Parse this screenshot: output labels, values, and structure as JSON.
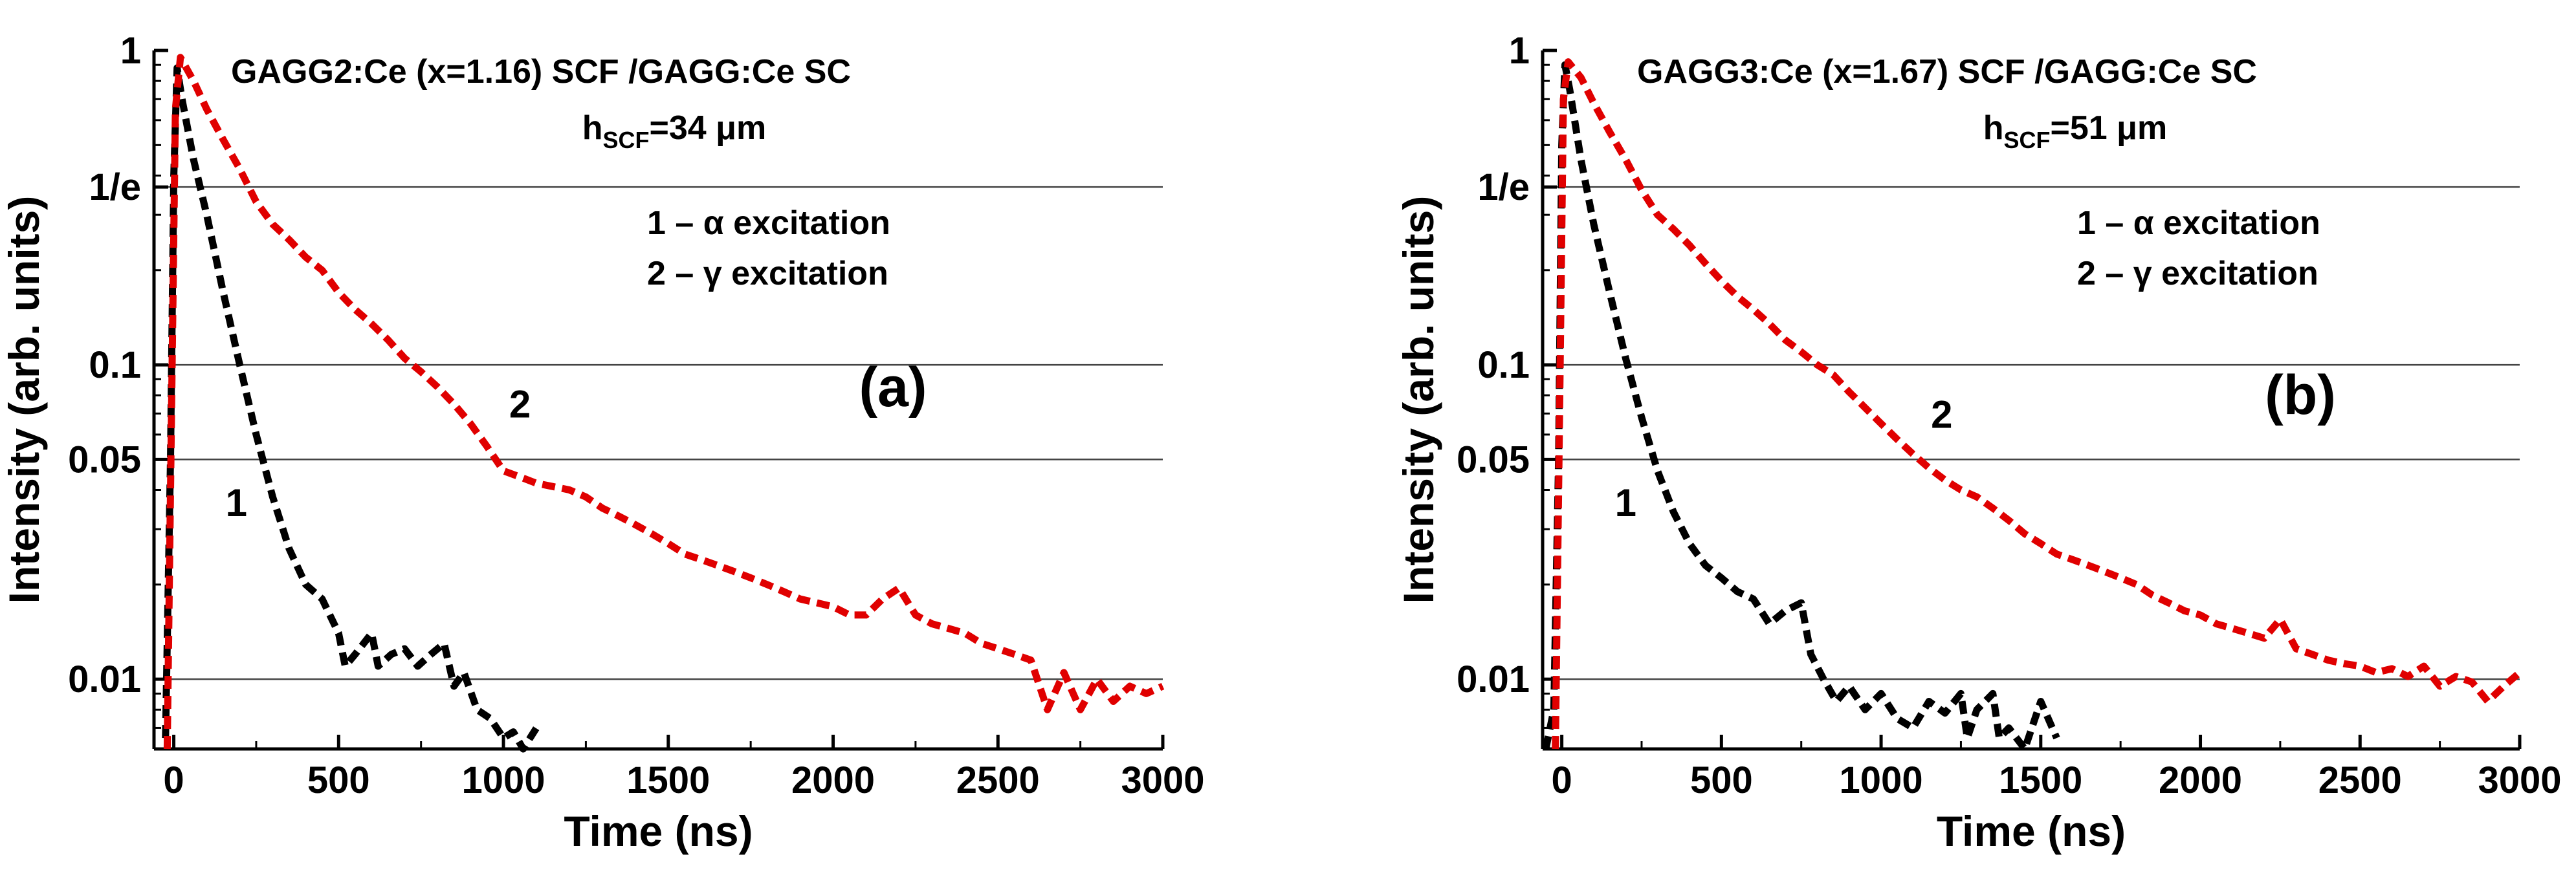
{
  "chart_data": [
    {
      "type": "line",
      "panel_label": "(a)",
      "title": "GAGG2:Ce (x=1.16) SCF /GAGG:Ce SC",
      "thickness": {
        "prefix": "h",
        "sub": "SCF",
        "suffix": "=34 μm"
      },
      "xlabel": "Time (ns)",
      "ylabel": "Intensity (arb. units)",
      "xlim": [
        -60,
        3000
      ],
      "ylim": [
        0.006,
        1.0
      ],
      "yscale": "log",
      "xticks": [
        0,
        500,
        1000,
        1500,
        2000,
        2500,
        3000
      ],
      "xtick_labels": [
        "0",
        "500",
        "1000",
        "1500",
        "2000",
        "2500",
        "3000"
      ],
      "yticks": [
        0.01,
        0.05,
        0.1,
        0.3679,
        1.0
      ],
      "ytick_labels": [
        "0.01",
        "0.05",
        "0.1",
        "1/e",
        "1"
      ],
      "reference_lines": [
        0.01,
        0.05,
        0.1,
        0.3679
      ],
      "legend": [
        "1 – α excitation",
        "2 – γ excitation"
      ],
      "series": [
        {
          "name": "1",
          "label": "1",
          "color": "#000000",
          "label_at": [
            190,
            0.033
          ],
          "points": [
            [
              -25,
              0.0065
            ],
            [
              -10,
              0.05
            ],
            [
              0,
              0.4
            ],
            [
              10,
              0.88
            ],
            [
              25,
              0.7
            ],
            [
              60,
              0.45
            ],
            [
              100,
              0.3
            ],
            [
              150,
              0.17
            ],
            [
              200,
              0.1
            ],
            [
              250,
              0.06
            ],
            [
              300,
              0.038
            ],
            [
              350,
              0.026
            ],
            [
              400,
              0.02
            ],
            [
              450,
              0.018
            ],
            [
              500,
              0.014
            ],
            [
              520,
              0.011
            ],
            [
              550,
              0.012
            ],
            [
              600,
              0.014
            ],
            [
              620,
              0.011
            ],
            [
              660,
              0.012
            ],
            [
              700,
              0.0125
            ],
            [
              740,
              0.011
            ],
            [
              780,
              0.012
            ],
            [
              820,
              0.013
            ],
            [
              850,
              0.0095
            ],
            [
              880,
              0.0105
            ],
            [
              920,
              0.008
            ],
            [
              960,
              0.0075
            ],
            [
              1000,
              0.0065
            ],
            [
              1030,
              0.0068
            ],
            [
              1060,
              0.006
            ],
            [
              1100,
              0.007
            ]
          ]
        },
        {
          "name": "2",
          "label": "2",
          "color": "#e00000",
          "label_at": [
            1050,
            0.068
          ],
          "points": [
            [
              -20,
              0.006
            ],
            [
              -5,
              0.1
            ],
            [
              5,
              0.65
            ],
            [
              20,
              0.95
            ],
            [
              60,
              0.8
            ],
            [
              100,
              0.65
            ],
            [
              150,
              0.52
            ],
            [
              200,
              0.42
            ],
            [
              250,
              0.33
            ],
            [
              300,
              0.28
            ],
            [
              350,
              0.25
            ],
            [
              400,
              0.22
            ],
            [
              450,
              0.2
            ],
            [
              500,
              0.17
            ],
            [
              550,
              0.15
            ],
            [
              600,
              0.135
            ],
            [
              650,
              0.12
            ],
            [
              700,
              0.105
            ],
            [
              750,
              0.095
            ],
            [
              800,
              0.085
            ],
            [
              850,
              0.075
            ],
            [
              900,
              0.065
            ],
            [
              950,
              0.055
            ],
            [
              1000,
              0.046
            ],
            [
              1050,
              0.044
            ],
            [
              1100,
              0.042
            ],
            [
              1150,
              0.041
            ],
            [
              1200,
              0.04
            ],
            [
              1250,
              0.038
            ],
            [
              1300,
              0.035
            ],
            [
              1350,
              0.033
            ],
            [
              1400,
              0.031
            ],
            [
              1450,
              0.029
            ],
            [
              1500,
              0.027
            ],
            [
              1550,
              0.025
            ],
            [
              1600,
              0.024
            ],
            [
              1650,
              0.023
            ],
            [
              1700,
              0.022
            ],
            [
              1750,
              0.021
            ],
            [
              1800,
              0.02
            ],
            [
              1850,
              0.019
            ],
            [
              1900,
              0.018
            ],
            [
              1950,
              0.0175
            ],
            [
              2000,
              0.017
            ],
            [
              2050,
              0.016
            ],
            [
              2100,
              0.016
            ],
            [
              2150,
              0.018
            ],
            [
              2200,
              0.0195
            ],
            [
              2250,
              0.016
            ],
            [
              2300,
              0.015
            ],
            [
              2350,
              0.0145
            ],
            [
              2400,
              0.014
            ],
            [
              2450,
              0.013
            ],
            [
              2500,
              0.0125
            ],
            [
              2550,
              0.012
            ],
            [
              2600,
              0.0115
            ],
            [
              2650,
              0.008
            ],
            [
              2700,
              0.0105
            ],
            [
              2750,
              0.008
            ],
            [
              2800,
              0.01
            ],
            [
              2850,
              0.0085
            ],
            [
              2900,
              0.0095
            ],
            [
              2950,
              0.009
            ],
            [
              3000,
              0.0095
            ]
          ]
        }
      ]
    },
    {
      "type": "line",
      "panel_label": "(b)",
      "title": "GAGG3:Ce (x=1.67) SCF /GAGG:Ce SC",
      "thickness": {
        "prefix": "h",
        "sub": "SCF",
        "suffix": "=51 μm"
      },
      "xlabel": "Time (ns)",
      "ylabel": "Intensity (arb. units)",
      "xlim": [
        -60,
        3000
      ],
      "ylim": [
        0.006,
        1.0
      ],
      "yscale": "log",
      "xticks": [
        0,
        500,
        1000,
        1500,
        2000,
        2500,
        3000
      ],
      "xtick_labels": [
        "0",
        "500",
        "1000",
        "1500",
        "2000",
        "2500",
        "3000"
      ],
      "yticks": [
        0.01,
        0.05,
        0.1,
        0.3679,
        1.0
      ],
      "ytick_labels": [
        "0.01",
        "0.05",
        "0.1",
        "1/e",
        "1"
      ],
      "reference_lines": [
        0.01,
        0.05,
        0.1,
        0.3679
      ],
      "legend": [
        "1 – α excitation",
        "2 – γ excitation"
      ],
      "series": [
        {
          "name": "1",
          "label": "1",
          "color": "#000000",
          "label_at": [
            200,
            0.033
          ],
          "points": [
            [
              -50,
              0.006
            ],
            [
              -25,
              0.008
            ],
            [
              -10,
              0.05
            ],
            [
              0,
              0.5
            ],
            [
              10,
              0.9
            ],
            [
              25,
              0.75
            ],
            [
              60,
              0.45
            ],
            [
              100,
              0.28
            ],
            [
              150,
              0.17
            ],
            [
              200,
              0.105
            ],
            [
              250,
              0.068
            ],
            [
              300,
              0.046
            ],
            [
              350,
              0.034
            ],
            [
              400,
              0.027
            ],
            [
              450,
              0.023
            ],
            [
              500,
              0.021
            ],
            [
              550,
              0.019
            ],
            [
              600,
              0.018
            ],
            [
              650,
              0.015
            ],
            [
              700,
              0.0165
            ],
            [
              750,
              0.0175
            ],
            [
              780,
              0.012
            ],
            [
              820,
              0.01
            ],
            [
              860,
              0.0085
            ],
            [
              900,
              0.0095
            ],
            [
              950,
              0.008
            ],
            [
              1000,
              0.009
            ],
            [
              1050,
              0.0075
            ],
            [
              1100,
              0.007
            ],
            [
              1150,
              0.0085
            ],
            [
              1200,
              0.0078
            ],
            [
              1250,
              0.009
            ],
            [
              1270,
              0.0065
            ],
            [
              1300,
              0.008
            ],
            [
              1350,
              0.009
            ],
            [
              1370,
              0.0065
            ],
            [
              1400,
              0.007
            ],
            [
              1450,
              0.006
            ],
            [
              1500,
              0.0085
            ],
            [
              1550,
              0.0065
            ]
          ]
        },
        {
          "name": "2",
          "label": "2",
          "color": "#e00000",
          "label_at": [
            1190,
            0.063
          ],
          "points": [
            [
              -20,
              0.006
            ],
            [
              -5,
              0.1
            ],
            [
              5,
              0.7
            ],
            [
              20,
              0.92
            ],
            [
              60,
              0.82
            ],
            [
              100,
              0.68
            ],
            [
              150,
              0.55
            ],
            [
              200,
              0.45
            ],
            [
              250,
              0.36
            ],
            [
              300,
              0.3
            ],
            [
              350,
              0.27
            ],
            [
              400,
              0.24
            ],
            [
              450,
              0.21
            ],
            [
              500,
              0.185
            ],
            [
              550,
              0.165
            ],
            [
              600,
              0.15
            ],
            [
              650,
              0.135
            ],
            [
              700,
              0.12
            ],
            [
              750,
              0.11
            ],
            [
              800,
              0.1
            ],
            [
              850,
              0.093
            ],
            [
              900,
              0.082
            ],
            [
              950,
              0.073
            ],
            [
              1000,
              0.065
            ],
            [
              1050,
              0.058
            ],
            [
              1100,
              0.052
            ],
            [
              1150,
              0.047
            ],
            [
              1200,
              0.043
            ],
            [
              1250,
              0.04
            ],
            [
              1300,
              0.038
            ],
            [
              1350,
              0.035
            ],
            [
              1400,
              0.032
            ],
            [
              1450,
              0.029
            ],
            [
              1500,
              0.027
            ],
            [
              1550,
              0.025
            ],
            [
              1600,
              0.024
            ],
            [
              1650,
              0.023
            ],
            [
              1700,
              0.022
            ],
            [
              1750,
              0.021
            ],
            [
              1800,
              0.02
            ],
            [
              1850,
              0.0185
            ],
            [
              1900,
              0.0175
            ],
            [
              1950,
              0.0165
            ],
            [
              2000,
              0.016
            ],
            [
              2050,
              0.015
            ],
            [
              2100,
              0.0145
            ],
            [
              2150,
              0.014
            ],
            [
              2200,
              0.0135
            ],
            [
              2250,
              0.0155
            ],
            [
              2300,
              0.0125
            ],
            [
              2350,
              0.012
            ],
            [
              2400,
              0.0115
            ],
            [
              2450,
              0.0112
            ],
            [
              2500,
              0.011
            ],
            [
              2550,
              0.0105
            ],
            [
              2600,
              0.0108
            ],
            [
              2650,
              0.0102
            ],
            [
              2700,
              0.011
            ],
            [
              2750,
              0.0095
            ],
            [
              2800,
              0.0102
            ],
            [
              2850,
              0.0098
            ],
            [
              2900,
              0.0085
            ],
            [
              2950,
              0.0095
            ],
            [
              3000,
              0.0105
            ]
          ]
        }
      ]
    }
  ]
}
